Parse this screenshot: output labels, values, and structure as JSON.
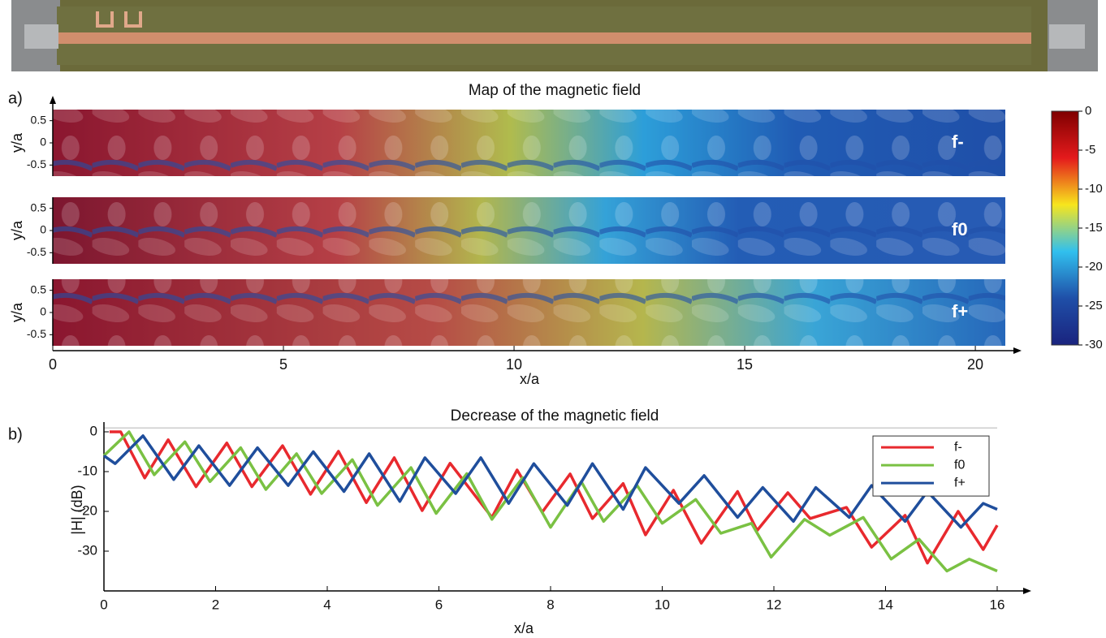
{
  "chart_data": [
    {
      "type": "heatmap",
      "panel_label": "a)",
      "title": "Map of the magnetic field",
      "panels": [
        "f-",
        "f0",
        "f+"
      ],
      "x_label": "x/a",
      "y_label": "y/a",
      "xlim": [
        0,
        20.65
      ],
      "xticks": [
        0,
        5,
        10,
        15,
        20
      ],
      "ylim": [
        -0.75,
        0.75
      ],
      "yticks": [
        0.5,
        0,
        -0.5
      ],
      "clim": [
        -30,
        0
      ],
      "cticks": [
        0,
        -5,
        -10,
        -15,
        -20,
        -25,
        -30
      ],
      "colormap": [
        "#7f0000",
        "#e41a1c",
        "#f7e51d",
        "#31c0ee",
        "#1f4fa8",
        "#1a237e"
      ]
    },
    {
      "type": "line",
      "panel_label": "b)",
      "title": "Decrease of the magnetic field",
      "x_label": "x/a",
      "y_label": "|H| (dB)",
      "xlim": [
        0,
        16
      ],
      "xticks": [
        0,
        2,
        4,
        6,
        8,
        10,
        12,
        14,
        16
      ],
      "ylim": [
        -40,
        1
      ],
      "yticks": [
        -30,
        -20,
        -10,
        0
      ],
      "legend": "upper right",
      "series": [
        {
          "name": "f-",
          "color": "#e8292e",
          "x": [
            0.1,
            0.3,
            0.73,
            1.15,
            1.65,
            2.2,
            2.65,
            3.2,
            3.7,
            4.2,
            4.7,
            5.2,
            5.7,
            6.2,
            6.95,
            7.4,
            7.85,
            8.35,
            8.75,
            9.3,
            9.7,
            10.2,
            10.7,
            11.35,
            11.7,
            12.25,
            12.65,
            13.3,
            13.75,
            14.35,
            14.75,
            15.3,
            15.75,
            16
          ],
          "values": [
            0,
            0,
            -11.6,
            -2,
            -13.8,
            -2.8,
            -13.8,
            -3.5,
            -15.7,
            -4.9,
            -17.8,
            -6.5,
            -19.8,
            -7.9,
            -21.5,
            -9.6,
            -20.2,
            -10.6,
            -21.8,
            -13,
            -25.9,
            -14.7,
            -28,
            -15,
            -24.8,
            -15.3,
            -21.8,
            -19,
            -29,
            -21,
            -33,
            -20,
            -29.6,
            -23.5
          ]
        },
        {
          "name": "f0",
          "color": "#7ac143",
          "x": [
            0,
            0.45,
            0.9,
            1.45,
            1.9,
            2.45,
            2.9,
            3.45,
            3.9,
            4.45,
            4.9,
            5.5,
            5.95,
            6.5,
            6.95,
            7.5,
            8.0,
            8.55,
            8.95,
            9.55,
            10.0,
            10.6,
            11.05,
            11.6,
            11.95,
            12.55,
            13.0,
            13.6,
            14.1,
            14.6,
            15.1,
            15.5,
            16
          ],
          "values": [
            -6,
            0,
            -10.8,
            -2.5,
            -12.5,
            -4,
            -14.5,
            -5.5,
            -15.5,
            -7,
            -18.5,
            -9,
            -20.5,
            -10.5,
            -22,
            -11.5,
            -24,
            -12.5,
            -22.5,
            -13.5,
            -23,
            -17,
            -25.5,
            -23,
            -31.5,
            -22,
            -26,
            -21.5,
            -32,
            -27,
            -35,
            -32,
            -35
          ]
        },
        {
          "name": "f+",
          "color": "#1f4e9c",
          "x": [
            0,
            0.2,
            0.7,
            1.25,
            1.7,
            2.25,
            2.75,
            3.3,
            3.75,
            4.3,
            4.75,
            5.3,
            5.75,
            6.3,
            6.75,
            7.25,
            7.7,
            8.3,
            8.75,
            9.3,
            9.7,
            10.3,
            10.75,
            11.35,
            11.8,
            12.35,
            12.75,
            13.35,
            13.75,
            14.35,
            14.75,
            15.35,
            15.75,
            16
          ],
          "values": [
            -6,
            -8,
            -1,
            -12,
            -3.5,
            -13.5,
            -4,
            -13.5,
            -5,
            -15,
            -5.5,
            -17.5,
            -6.5,
            -15.5,
            -6.5,
            -18,
            -8,
            -18.5,
            -8,
            -19.5,
            -9,
            -18,
            -11,
            -21.5,
            -14,
            -22.5,
            -14,
            -21.5,
            -13.5,
            -22.5,
            -15,
            -24,
            -18,
            -19.5
          ]
        }
      ]
    }
  ]
}
